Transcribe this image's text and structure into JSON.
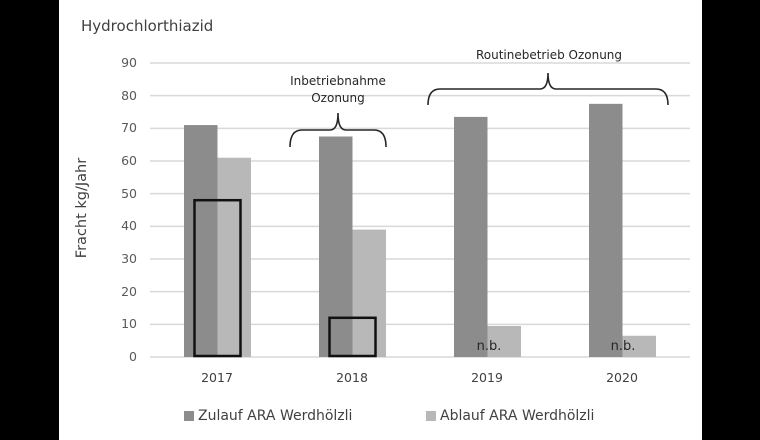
{
  "chart_data": {
    "type": "bar",
    "title": "Hydrochlorthiazid",
    "xlabel": "",
    "ylabel": "Fracht  kg/Jahr",
    "ylim": [
      0,
      90
    ],
    "yticks": [
      0,
      10,
      20,
      30,
      40,
      50,
      60,
      70,
      80,
      90
    ],
    "grid": true,
    "legend_position": "bottom",
    "categories": [
      "2017",
      "2018",
      "2019",
      "2020"
    ],
    "series": [
      {
        "name": "Zulauf ARA Werdhölzli",
        "color": "#8c8c8c",
        "values": [
          71,
          67.5,
          73.5,
          77.5
        ]
      },
      {
        "name": "Ablauf ARA Werdhölzli",
        "color": "#b8b8b8",
        "values": [
          61,
          39,
          9.5,
          6.5
        ]
      }
    ],
    "outline_boxes": [
      {
        "category": "2017",
        "value": 48
      },
      {
        "category": "2018",
        "value": 12
      }
    ],
    "bar_labels": [
      {
        "category": "2019",
        "text": "n.b."
      },
      {
        "category": "2020",
        "text": "n.b."
      }
    ],
    "annotations": [
      {
        "text_lines": [
          "Inbetriebnahme",
          "Ozonung"
        ],
        "spans": [
          "2018"
        ],
        "type": "brace"
      },
      {
        "text_lines": [
          "Routinebetrieb Ozonung"
        ],
        "spans": [
          "2019",
          "2020"
        ],
        "type": "brace"
      }
    ]
  },
  "labels": {
    "title": "Hydrochlorthiazid",
    "ylabel": "Fracht  kg/Jahr",
    "yticks": [
      "90",
      "80",
      "70",
      "60",
      "50",
      "40",
      "30",
      "20",
      "10",
      "0"
    ],
    "xticks": [
      "2017",
      "2018",
      "2019",
      "2020"
    ],
    "nb": "n.b.",
    "annot1_line1": "Inbetriebnahme",
    "annot1_line2": "Ozonung",
    "annot2": "Routinebetrieb Ozonung",
    "legend_zulauf": "Zulauf ARA Werdhölzli",
    "legend_ablauf": "Ablauf ARA Werdhölzli"
  }
}
